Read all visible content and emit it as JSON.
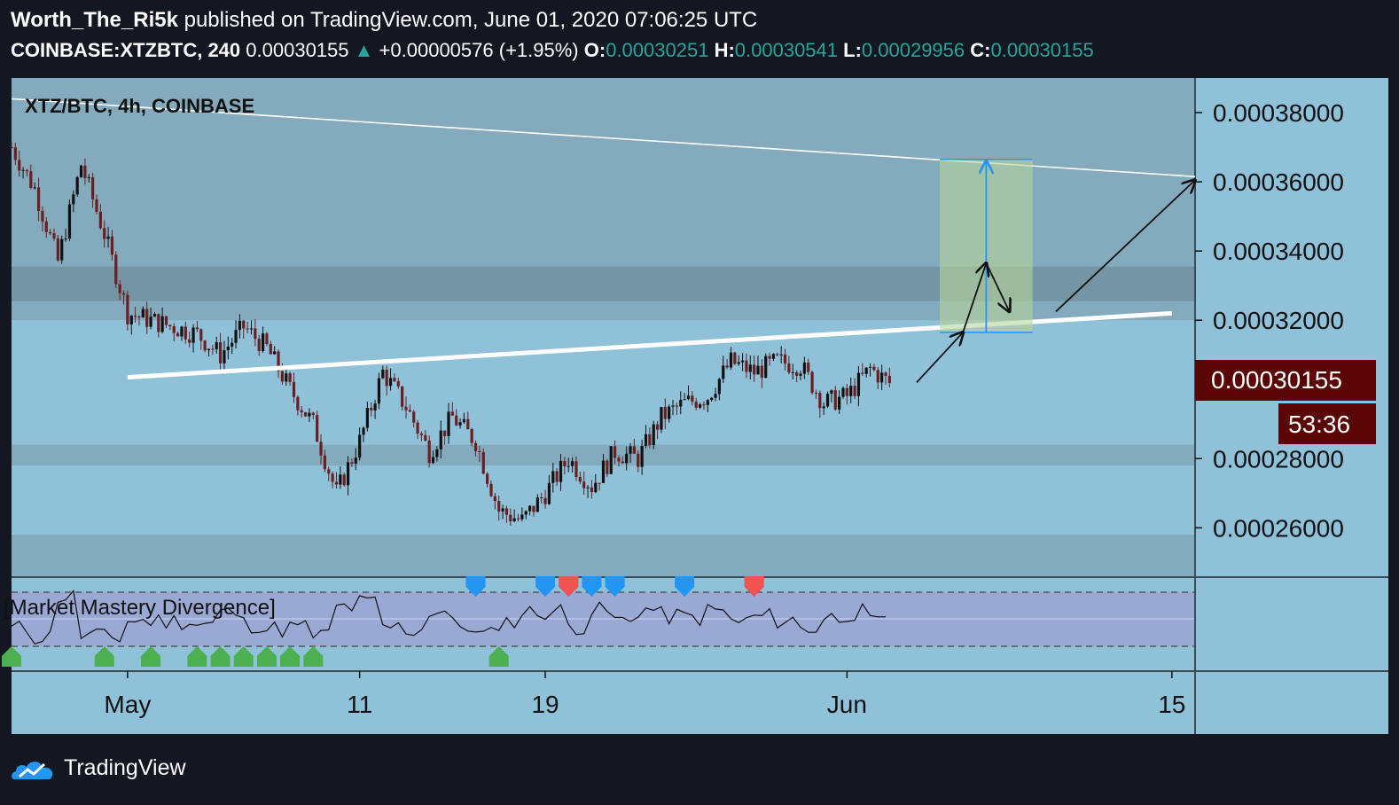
{
  "header": {
    "author": "Worth_The_Ri5k",
    "published": "published on TradingView.com, June 01, 2020 07:06:25 UTC",
    "symbol_full": "COINBASE:XTZBTC, 240",
    "last": "0.00030155",
    "change": "+0.00000576 (+1.95%)",
    "ohlc": [
      {
        "label": "O:",
        "value": "0.00030251"
      },
      {
        "label": "H:",
        "value": "0.00030541"
      },
      {
        "label": "L:",
        "value": "0.00029956"
      },
      {
        "label": "C:",
        "value": "0.00030155"
      }
    ]
  },
  "pane_label": "XTZ/BTC, 4h, COINBASE",
  "indicator_label": "[Market Mastery Divergence]",
  "price_tag": "0.00030155",
  "countdown": "53:36",
  "footer_brand": "TradingView",
  "colors": {
    "background": "#131722",
    "pane": "#8fc1d9",
    "zone_dark": "#82a6b7",
    "candle_up": "#111111",
    "candle_down": "#6b1f20",
    "price_tag": "#5a0606",
    "target_box": "#b7d39a",
    "measure": "#2196f3",
    "diverge_bull": "#4caf50",
    "diverge_bear": "#f05350",
    "diverge_hidden": "#2196f3"
  },
  "chart_data": {
    "type": "candlestick",
    "title": "XTZ/BTC, 4h, COINBASE",
    "interval": "4h",
    "ylim": [
      0.000246,
      0.00039
    ],
    "y_ticks": [
      "0.00038000",
      "0.00036000",
      "0.00034000",
      "0.00032000",
      "0.00028000",
      "0.00026000"
    ],
    "x_ticks": [
      "May",
      "11",
      "19",
      "Jun",
      "15"
    ],
    "x_range": [
      "2020-04-26",
      "2020-06-16"
    ],
    "last_price": 0.00030155,
    "zones": [
      {
        "from": 0.00032,
        "to": 0.00039,
        "shade": "dark"
      },
      {
        "from": 0.0003255,
        "to": 0.0003355,
        "shade": "darker"
      },
      {
        "from": 0.000278,
        "to": 0.000284,
        "shade": "dark"
      },
      {
        "from": 0.000246,
        "to": 0.000258,
        "shade": "dark"
      }
    ],
    "price_path": [
      [
        "2020-04-26",
        0.00037
      ],
      [
        "2020-04-27",
        0.000358
      ],
      [
        "2020-04-28",
        0.000337
      ],
      [
        "2020-04-29",
        0.000365
      ],
      [
        "2020-04-30",
        0.000345
      ],
      [
        "2020-05-01",
        0.000322
      ],
      [
        "2020-05-02",
        0.00032
      ],
      [
        "2020-05-03",
        0.000318
      ],
      [
        "2020-05-04",
        0.000316
      ],
      [
        "2020-05-05",
        0.00031
      ],
      [
        "2020-05-06",
        0.000318
      ],
      [
        "2020-05-07",
        0.000312
      ],
      [
        "2020-05-08",
        0.0003
      ],
      [
        "2020-05-09",
        0.00029
      ],
      [
        "2020-05-10",
        0.00027
      ],
      [
        "2020-05-11",
        0.000285
      ],
      [
        "2020-05-12",
        0.000305
      ],
      [
        "2020-05-13",
        0.000295
      ],
      [
        "2020-05-14",
        0.000282
      ],
      [
        "2020-05-15",
        0.000292
      ],
      [
        "2020-05-16",
        0.000285
      ],
      [
        "2020-05-17",
        0.000265
      ],
      [
        "2020-05-18",
        0.000262
      ],
      [
        "2020-05-19",
        0.00027
      ],
      [
        "2020-05-20",
        0.00028
      ],
      [
        "2020-05-21",
        0.000272
      ],
      [
        "2020-05-22",
        0.000282
      ],
      [
        "2020-05-23",
        0.00028
      ],
      [
        "2020-05-24",
        0.000292
      ],
      [
        "2020-05-25",
        0.000296
      ],
      [
        "2020-05-26",
        0.000298
      ],
      [
        "2020-05-27",
        0.000308
      ],
      [
        "2020-05-28",
        0.000305
      ],
      [
        "2020-05-29",
        0.000308
      ],
      [
        "2020-05-30",
        0.000307
      ],
      [
        "2020-05-31",
        0.000296
      ],
      [
        "2020-06-01",
        0.000298
      ],
      [
        "2020-06-02",
        0.000306
      ],
      [
        "2020-06-03",
        0.000301
      ]
    ],
    "drawings": {
      "resistance_line": [
        [
          "2020-04-26",
          0.000384
        ],
        [
          "2020-06-16",
          0.0003615
        ]
      ],
      "support_line": [
        [
          "2020-05-01",
          0.0003035
        ],
        [
          "2020-06-15",
          0.000322
        ]
      ],
      "target_box": {
        "from_date": "2020-06-05",
        "to_date": "2020-06-09",
        "low": 0.0003165,
        "high": 0.0003665
      },
      "projection": [
        [
          "2020-06-04",
          0.000302
        ],
        [
          "2020-06-06",
          0.0003165
        ],
        [
          "2020-06-07",
          0.0003365
        ],
        [
          "2020-06-08",
          0.0003225
        ],
        [
          "2020-06-10",
          0.0003225
        ],
        [
          "2020-06-16",
          0.0003605
        ]
      ]
    },
    "indicator": {
      "name": "[Market Mastery Divergence]",
      "bands": [
        70,
        30
      ],
      "bull_markers": [
        "2020-04-26",
        "2020-04-30",
        "2020-05-02",
        "2020-05-04",
        "2020-05-05",
        "2020-05-06",
        "2020-05-07",
        "2020-05-08",
        "2020-05-09",
        "2020-05-17"
      ],
      "bear_markers": [
        "2020-05-20",
        "2020-05-28"
      ],
      "hidden_markers": [
        "2020-05-16",
        "2020-05-19",
        "2020-05-20",
        "2020-05-21",
        "2020-05-22",
        "2020-05-25"
      ]
    }
  }
}
